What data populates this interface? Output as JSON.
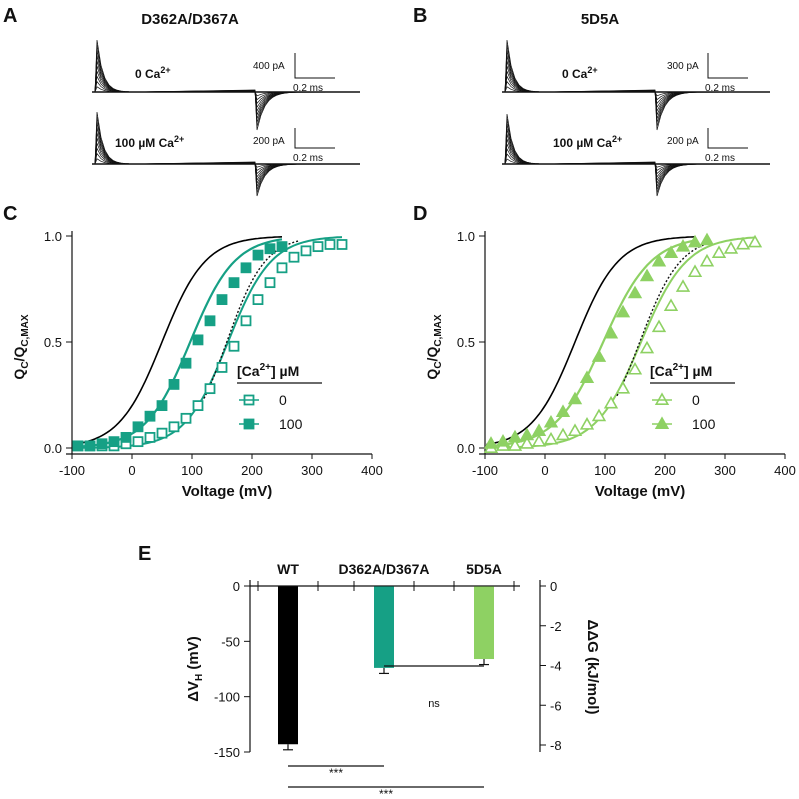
{
  "colors": {
    "black": "#000000",
    "teal": "#16a085",
    "lightgreen": "#8ed163"
  },
  "panels": {
    "A": {
      "letter": "A",
      "title": "D362A/D367A",
      "top_label": "0 Ca",
      "bottom_label": "100 µM Ca",
      "sup": "2+",
      "top_scale": "400 pA",
      "bottom_scale": "200 pA",
      "time_scale": "0.2 ms"
    },
    "B": {
      "letter": "B",
      "title": "5D5A",
      "top_label": "0 Ca",
      "bottom_label": "100 µM Ca",
      "sup": "2+",
      "top_scale": "300 pA",
      "bottom_scale": "200 pA",
      "time_scale": "0.2 ms"
    }
  },
  "chart_data": [
    {
      "panel": "C",
      "type": "scatter",
      "xlabel": "Voltage (mV)",
      "ylabel_main": "Q",
      "ylabel_sub1": "C",
      "ylabel_mid": "/Q",
      "ylabel_sub2": "C,MAX",
      "xlim": [
        -100,
        400
      ],
      "ylim": [
        0,
        1
      ],
      "xticks": [
        "-100",
        "0",
        "100",
        "200",
        "300",
        "400"
      ],
      "yticks": [
        "0.0",
        "0.5",
        "1.0"
      ],
      "legend_title": "[Ca",
      "legend_sup": "2+",
      "legend_unit": "] µM",
      "series": [
        {
          "name": "0",
          "marker": "open-square",
          "color": "#16a085",
          "x": [
            -90,
            -70,
            -50,
            -30,
            -10,
            10,
            30,
            50,
            70,
            90,
            110,
            130,
            150,
            170,
            190,
            210,
            230,
            250,
            270,
            290,
            310,
            330,
            350
          ],
          "y": [
            0.01,
            0.01,
            0.01,
            0.01,
            0.02,
            0.03,
            0.05,
            0.07,
            0.1,
            0.14,
            0.2,
            0.28,
            0.38,
            0.48,
            0.6,
            0.7,
            0.78,
            0.85,
            0.9,
            0.93,
            0.95,
            0.96,
            0.96
          ]
        },
        {
          "name": "100",
          "marker": "filled-square",
          "color": "#16a085",
          "x": [
            -90,
            -70,
            -50,
            -30,
            -10,
            10,
            30,
            50,
            70,
            90,
            110,
            130,
            150,
            170,
            190,
            210,
            230,
            250
          ],
          "y": [
            0.01,
            0.01,
            0.02,
            0.03,
            0.05,
            0.1,
            0.15,
            0.2,
            0.3,
            0.4,
            0.51,
            0.6,
            0.7,
            0.78,
            0.85,
            0.91,
            0.94,
            0.95
          ]
        }
      ],
      "wt_fit_vhalf": 50,
      "wt_fit_slope": 36,
      "fit0_vhalf": 160,
      "fit0_slope": 36,
      "fit100_vhalf": 97,
      "fit100_slope": 37
    },
    {
      "panel": "D",
      "type": "scatter",
      "xlabel": "Voltage (mV)",
      "ylabel_main": "Q",
      "ylabel_sub1": "C",
      "ylabel_mid": "/Q",
      "ylabel_sub2": "C,MAX",
      "xlim": [
        -100,
        400
      ],
      "ylim": [
        0,
        1
      ],
      "xticks": [
        "-100",
        "0",
        "100",
        "200",
        "300",
        "400"
      ],
      "yticks": [
        "0.0",
        "0.5",
        "1.0"
      ],
      "legend_title": "[Ca",
      "legend_sup": "2+",
      "legend_unit": "] µM",
      "series": [
        {
          "name": "0",
          "marker": "open-triangle",
          "color": "#8ed163",
          "x": [
            -90,
            -70,
            -50,
            -30,
            -10,
            10,
            30,
            50,
            70,
            90,
            110,
            130,
            150,
            170,
            190,
            210,
            230,
            250,
            270,
            290,
            310,
            330,
            350
          ],
          "y": [
            0.0,
            0.01,
            0.01,
            0.02,
            0.03,
            0.04,
            0.06,
            0.08,
            0.11,
            0.15,
            0.21,
            0.28,
            0.37,
            0.47,
            0.57,
            0.67,
            0.76,
            0.83,
            0.88,
            0.92,
            0.94,
            0.96,
            0.97
          ]
        },
        {
          "name": "100",
          "marker": "filled-triangle",
          "color": "#8ed163",
          "x": [
            -90,
            -70,
            -50,
            -30,
            -10,
            10,
            30,
            50,
            70,
            90,
            110,
            130,
            150,
            170,
            190,
            210,
            230,
            250,
            270
          ],
          "y": [
            0.02,
            0.03,
            0.05,
            0.06,
            0.08,
            0.12,
            0.17,
            0.23,
            0.33,
            0.43,
            0.54,
            0.64,
            0.73,
            0.81,
            0.88,
            0.92,
            0.95,
            0.97,
            0.98
          ]
        }
      ],
      "wt_fit_vhalf": 50,
      "wt_fit_slope": 36,
      "fit0_vhalf": 160,
      "fit0_slope": 38,
      "fit100_vhalf": 97,
      "fit100_slope": 40
    },
    {
      "panel": "E",
      "type": "bar",
      "categories": [
        "WT",
        "D362A/D367A",
        "5D5A"
      ],
      "values": [
        -143,
        -74,
        -66
      ],
      "errors": [
        5,
        5,
        5
      ],
      "colors": [
        "#000000",
        "#16a085",
        "#8ed163"
      ],
      "ylabel_left": "ΔV",
      "ylabel_left_sub": "H",
      "ylabel_left_unit": " (mV)",
      "ylabel_right": "ΔΔG (kJ/mol)",
      "ylim": [
        -150,
        0
      ],
      "yticks_left": [
        "0",
        "-50",
        "-100",
        "-150"
      ],
      "yticks_right": [
        "0",
        "-2",
        "-4",
        "-6",
        "-8"
      ],
      "annotations": [
        "ns",
        "***",
        "***"
      ]
    }
  ]
}
